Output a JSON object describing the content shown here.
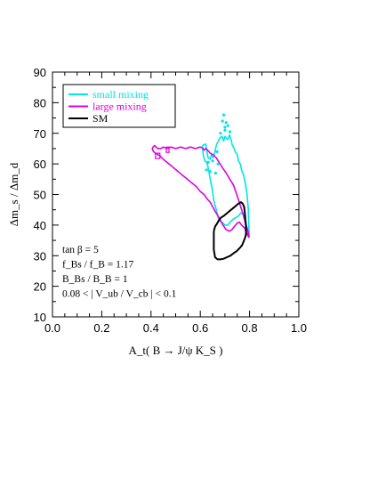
{
  "chart_data": {
    "type": "line",
    "xlabel": "A_t( B → J/ψ K_S )",
    "ylabel": "Δm_s / Δm_d",
    "xlim": [
      0.0,
      1.0
    ],
    "ylim": [
      10,
      90
    ],
    "xticks": [
      "0.0",
      "0.2",
      "0.4",
      "0.6",
      "0.8",
      "1.0"
    ],
    "yticks": [
      "10",
      "20",
      "30",
      "40",
      "50",
      "60",
      "70",
      "80",
      "90"
    ],
    "grid": false,
    "legend_position": "top-left",
    "legend": [
      {
        "label": "small mixing",
        "color": "#00e5e5"
      },
      {
        "label": "large mixing",
        "color": "#e000e0"
      },
      {
        "label": "SM",
        "color": "#000000"
      }
    ],
    "annotations": [
      "tan β = 5",
      "f_Bs / f_B = 1.17",
      "B_Bs / B_B = 1",
      "0.08 < | V_ub / V_cb | < 0.1"
    ],
    "series": [
      {
        "name": "small mixing",
        "color": "#00e5e5",
        "x": [
          0.608,
          0.622,
          0.628,
          0.632,
          0.64,
          0.645,
          0.652,
          0.658,
          0.665,
          0.67,
          0.68,
          0.688,
          0.695,
          0.7,
          0.705,
          0.712,
          0.718,
          0.725,
          0.73,
          0.735,
          0.742,
          0.75,
          0.755,
          0.762,
          0.768,
          0.775,
          0.782,
          0.79,
          0.795,
          0.798,
          0.798,
          0.792,
          0.782,
          0.775,
          0.765,
          0.755,
          0.745,
          0.735,
          0.722,
          0.712,
          0.7,
          0.688,
          0.675,
          0.665,
          0.655,
          0.648,
          0.64,
          0.635,
          0.63,
          0.625,
          0.618,
          0.612,
          0.608
        ],
        "y": [
          66,
          66.5,
          63.5,
          62.0,
          61.5,
          63.0,
          62.0,
          63.5,
          66.0,
          67.0,
          68.5,
          69.0,
          67.5,
          69.0,
          68.5,
          68.0,
          69.5,
          68.0,
          66.0,
          65.5,
          64.0,
          63.0,
          61.0,
          60.0,
          58.0,
          56.5,
          54.0,
          50.0,
          45.0,
          38.0,
          36.0,
          38.0,
          42.0,
          43.5,
          44.0,
          43.0,
          42.5,
          42.0,
          41.0,
          40.0,
          40.0,
          41.0,
          41.5,
          45.0,
          48.0,
          52.0,
          55.0,
          57.5,
          59.5,
          60.5,
          61.0,
          63.0,
          66.0
        ]
      },
      {
        "name": "large mixing",
        "color": "#e000e0",
        "x": [
          0.408,
          0.415,
          0.42,
          0.428,
          0.44,
          0.45,
          0.465,
          0.48,
          0.5,
          0.52,
          0.54,
          0.56,
          0.58,
          0.6,
          0.612,
          0.615,
          0.622,
          0.63,
          0.64,
          0.652,
          0.665,
          0.68,
          0.692,
          0.705,
          0.72,
          0.735,
          0.748,
          0.76,
          0.772,
          0.782,
          0.79,
          0.795,
          0.798,
          0.79,
          0.78,
          0.768,
          0.758,
          0.748,
          0.738,
          0.728,
          0.718,
          0.705,
          0.692,
          0.682,
          0.672,
          0.66,
          0.65,
          0.64,
          0.628,
          0.615,
          0.6,
          0.585,
          0.57,
          0.555,
          0.54,
          0.525,
          0.51,
          0.495,
          0.48,
          0.465,
          0.45,
          0.438,
          0.428,
          0.418,
          0.41,
          0.405,
          0.408
        ],
        "y": [
          65.5,
          66.0,
          65.5,
          65.0,
          65.0,
          65.5,
          65.0,
          65.5,
          65.0,
          65.5,
          65.0,
          65.5,
          65.0,
          65.5,
          65.0,
          64.5,
          65.0,
          64.5,
          63.5,
          63.0,
          62.0,
          60.0,
          58.5,
          57.0,
          55.0,
          53.0,
          50.0,
          47.0,
          44.0,
          41.0,
          39.0,
          37.5,
          36.0,
          37.0,
          39.0,
          40.0,
          41.0,
          40.5,
          39.5,
          38.5,
          38.0,
          38.5,
          40.0,
          41.5,
          43.0,
          44.5,
          46.0,
          47.5,
          48.5,
          50.0,
          51.0,
          52.5,
          53.5,
          54.5,
          55.5,
          56.5,
          57.5,
          58.5,
          59.5,
          60.5,
          61.5,
          62.5,
          63.0,
          63.5,
          64.0,
          65.0,
          65.5
        ]
      },
      {
        "name": "SM",
        "color": "#000000",
        "x": [
          0.655,
          0.66,
          0.668,
          0.675,
          0.685,
          0.695,
          0.71,
          0.725,
          0.74,
          0.755,
          0.765,
          0.772,
          0.778,
          0.782,
          0.785,
          0.786,
          0.784,
          0.78,
          0.775,
          0.77,
          0.76,
          0.748,
          0.735,
          0.722,
          0.708,
          0.695,
          0.682,
          0.67,
          0.66,
          0.655,
          0.655
        ],
        "y": [
          38.0,
          39.5,
          40.5,
          41.5,
          42.5,
          43.0,
          44.0,
          45.0,
          46.0,
          47.0,
          47.5,
          47.0,
          46.0,
          43.0,
          40.0,
          37.5,
          36.5,
          35.5,
          34.5,
          33.5,
          32.5,
          31.5,
          30.8,
          30.0,
          29.5,
          29.0,
          28.8,
          28.8,
          29.5,
          32.0,
          38.0
        ]
      }
    ],
    "scatter": {
      "name": "small mixing",
      "color": "#00e5e5",
      "x": [
        0.625,
        0.632,
        0.64,
        0.65,
        0.662,
        0.668,
        0.672,
        0.682,
        0.69,
        0.695,
        0.7,
        0.7,
        0.705,
        0.712,
        0.72
      ],
      "y": [
        58.0,
        60.5,
        57.5,
        61.0,
        57.0,
        64.0,
        60.0,
        70.0,
        74.0,
        76.0,
        72.0,
        71.0,
        73.5,
        72.5,
        70.5
      ]
    }
  }
}
